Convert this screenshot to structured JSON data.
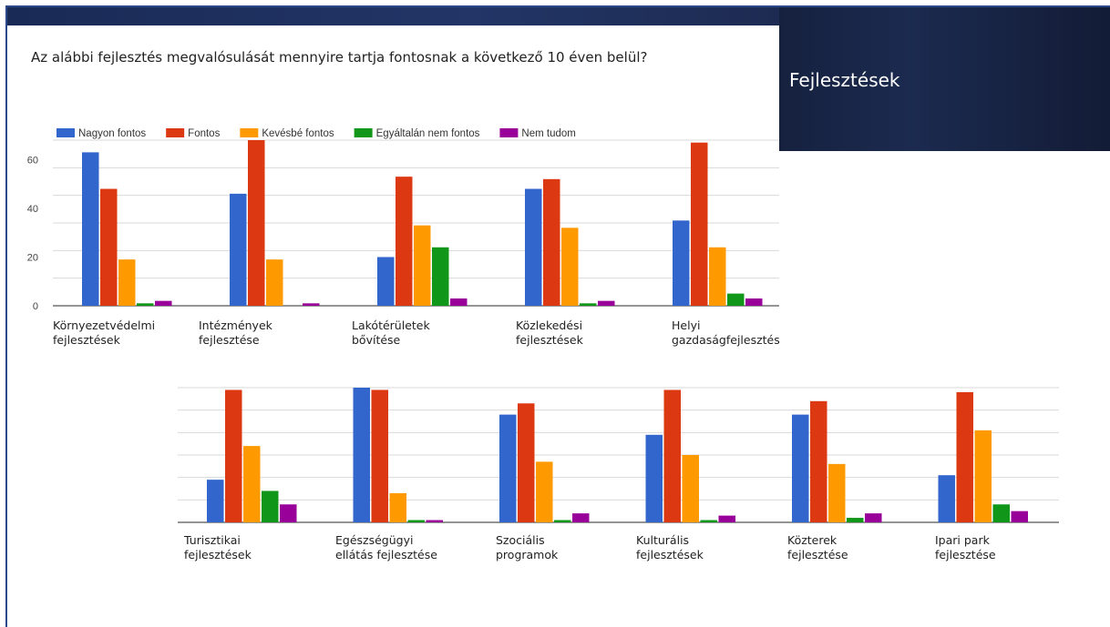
{
  "banner": {
    "title": "Fejlesztések"
  },
  "question": "Az alábbi fejlesztés megvalósulását mennyire tartja fontosnak a következő 10 éven belül?",
  "colors": {
    "Nagyon fontos": "#3366cc",
    "Fontos": "#dc3912",
    "Kevésbé fontos": "#ff9900",
    "Egyáltalán nem fontos": "#109618",
    "Nem tudom": "#990099"
  },
  "chart_data": [
    {
      "type": "bar",
      "title": "",
      "xlabel": "",
      "ylabel": "",
      "ylim": [
        0,
        68
      ],
      "yticks": [
        0,
        20,
        40,
        60
      ],
      "grid": true,
      "legend": "top-left",
      "categories": [
        [
          "Környezetvédelmi",
          "fejlesztések"
        ],
        [
          "Intézmények",
          "fejlesztése"
        ],
        [
          "Lakótérületek",
          "bővítése"
        ],
        [
          "Közlekedési",
          "fejlesztések"
        ],
        [
          "Helyi",
          "gazdaságfejlesztés"
        ]
      ],
      "series": [
        {
          "name": "Nagyon fontos",
          "values": [
            63,
            46,
            20,
            48,
            35
          ]
        },
        {
          "name": "Fontos",
          "values": [
            48,
            68,
            53,
            52,
            67
          ]
        },
        {
          "name": "Kevésbé fontos",
          "values": [
            19,
            19,
            33,
            32,
            24
          ]
        },
        {
          "name": "Egyáltalán nem fontos",
          "values": [
            1,
            0,
            24,
            1,
            5
          ]
        },
        {
          "name": "Nem tudom",
          "values": [
            2,
            1,
            3,
            2,
            3
          ]
        }
      ]
    },
    {
      "type": "bar",
      "title": "",
      "xlabel": "",
      "ylabel": "",
      "ylim": [
        0,
        60
      ],
      "grid": true,
      "legend": "none",
      "categories": [
        [
          "Turisztikai",
          "fejlesztések"
        ],
        [
          "Egészségügyi",
          "ellátás fejlesztése"
        ],
        [
          "Szociális",
          "programok"
        ],
        [
          "Kulturális",
          "fejlesztések"
        ],
        [
          "Közterek",
          "fejlesztése"
        ],
        [
          "Ipari park",
          "fejlesztése"
        ]
      ],
      "series": [
        {
          "name": "Nagyon fontos",
          "values": [
            19,
            60,
            48,
            39,
            48,
            21
          ]
        },
        {
          "name": "Fontos",
          "values": [
            59,
            59,
            53,
            59,
            54,
            58
          ]
        },
        {
          "name": "Kevésbé fontos",
          "values": [
            34,
            13,
            27,
            30,
            26,
            41
          ]
        },
        {
          "name": "Egyáltalán nem fontos",
          "values": [
            14,
            1,
            1,
            1,
            2,
            8
          ]
        },
        {
          "name": "Nem tudom",
          "values": [
            8,
            1,
            4,
            3,
            4,
            5
          ]
        }
      ]
    }
  ]
}
